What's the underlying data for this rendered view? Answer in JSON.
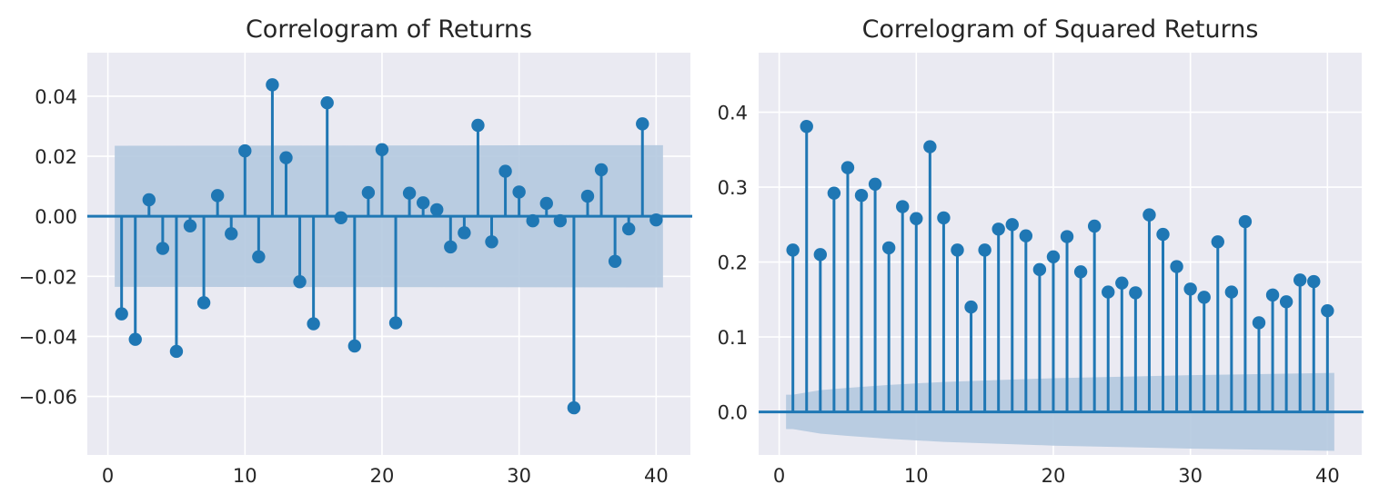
{
  "chart_data": [
    {
      "type": "stem",
      "title": "Correlogram of Returns",
      "xlabel": "",
      "ylabel": "",
      "xlim": [
        -1.5,
        42.5
      ],
      "ylim": [
        -0.0795,
        0.0545
      ],
      "xticks": [
        0,
        10,
        20,
        30,
        40
      ],
      "xtick_labels": [
        "0",
        "10",
        "20",
        "30",
        "40"
      ],
      "yticks": [
        -0.06,
        -0.04,
        -0.02,
        0.0,
        0.02,
        0.04
      ],
      "ytick_labels": [
        "−0.06",
        "−0.04",
        "−0.02",
        "0.00",
        "0.02",
        "0.04"
      ],
      "grid": true,
      "lags": [
        1,
        2,
        3,
        4,
        5,
        6,
        7,
        8,
        9,
        10,
        11,
        12,
        13,
        14,
        15,
        16,
        17,
        18,
        19,
        20,
        21,
        22,
        23,
        24,
        25,
        26,
        27,
        28,
        29,
        30,
        31,
        32,
        33,
        34,
        35,
        36,
        37,
        38,
        39,
        40
      ],
      "values": [
        -0.0325,
        -0.041,
        0.0055,
        -0.0107,
        -0.045,
        -0.0032,
        -0.0288,
        0.0069,
        -0.0058,
        0.0218,
        -0.0135,
        0.0438,
        0.0195,
        -0.0218,
        -0.0358,
        0.0378,
        -0.0005,
        -0.0432,
        0.0079,
        0.0222,
        -0.0355,
        0.0077,
        0.0045,
        0.0022,
        -0.0102,
        -0.0055,
        0.0303,
        -0.0085,
        0.015,
        0.0081,
        -0.0015,
        0.0043,
        -0.0015,
        -0.0638,
        0.0067,
        0.0155,
        -0.015,
        -0.0042,
        0.0308,
        -0.0012
      ],
      "confidence_band": {
        "upper": [
          0.0235,
          0.0237
        ],
        "lower": [
          -0.0235,
          -0.0237
        ]
      },
      "color": "#1f77b4",
      "band_color": "#b4c9df"
    },
    {
      "type": "stem",
      "title": "Correlogram of Squared Returns",
      "xlabel": "",
      "ylabel": "",
      "xlim": [
        -1.5,
        42.5
      ],
      "ylim": [
        -0.0575,
        0.4795
      ],
      "xticks": [
        0,
        10,
        20,
        30,
        40
      ],
      "xtick_labels": [
        "0",
        "10",
        "20",
        "30",
        "40"
      ],
      "yticks": [
        0.0,
        0.1,
        0.2,
        0.3,
        0.4
      ],
      "ytick_labels": [
        "0.0",
        "0.1",
        "0.2",
        "0.3",
        "0.4"
      ],
      "grid": true,
      "lags": [
        1,
        2,
        3,
        4,
        5,
        6,
        7,
        8,
        9,
        10,
        11,
        12,
        13,
        14,
        15,
        16,
        17,
        18,
        19,
        20,
        21,
        22,
        23,
        24,
        25,
        26,
        27,
        28,
        29,
        30,
        31,
        32,
        33,
        34,
        35,
        36,
        37,
        38,
        39,
        40
      ],
      "values": [
        0.216,
        0.381,
        0.21,
        0.292,
        0.326,
        0.289,
        0.304,
        0.219,
        0.274,
        0.258,
        0.354,
        0.259,
        0.216,
        0.14,
        0.216,
        0.244,
        0.25,
        0.235,
        0.19,
        0.207,
        0.234,
        0.187,
        0.248,
        0.16,
        0.172,
        0.159,
        0.263,
        0.237,
        0.194,
        0.164,
        0.153,
        0.227,
        0.16,
        0.254,
        0.119,
        0.156,
        0.147,
        0.176,
        0.174,
        0.135
      ],
      "confidence_band": {
        "x": [
          0.5,
          1,
          2,
          3,
          5,
          8,
          12,
          20,
          30,
          40.5
        ],
        "upper": [
          0.023,
          0.023,
          0.026,
          0.029,
          0.032,
          0.036,
          0.04,
          0.045,
          0.049,
          0.052
        ],
        "lower": [
          -0.023,
          -0.023,
          -0.026,
          -0.029,
          -0.032,
          -0.036,
          -0.04,
          -0.045,
          -0.049,
          -0.052
        ]
      },
      "color": "#1f77b4",
      "band_color": "#b4c9df"
    }
  ]
}
